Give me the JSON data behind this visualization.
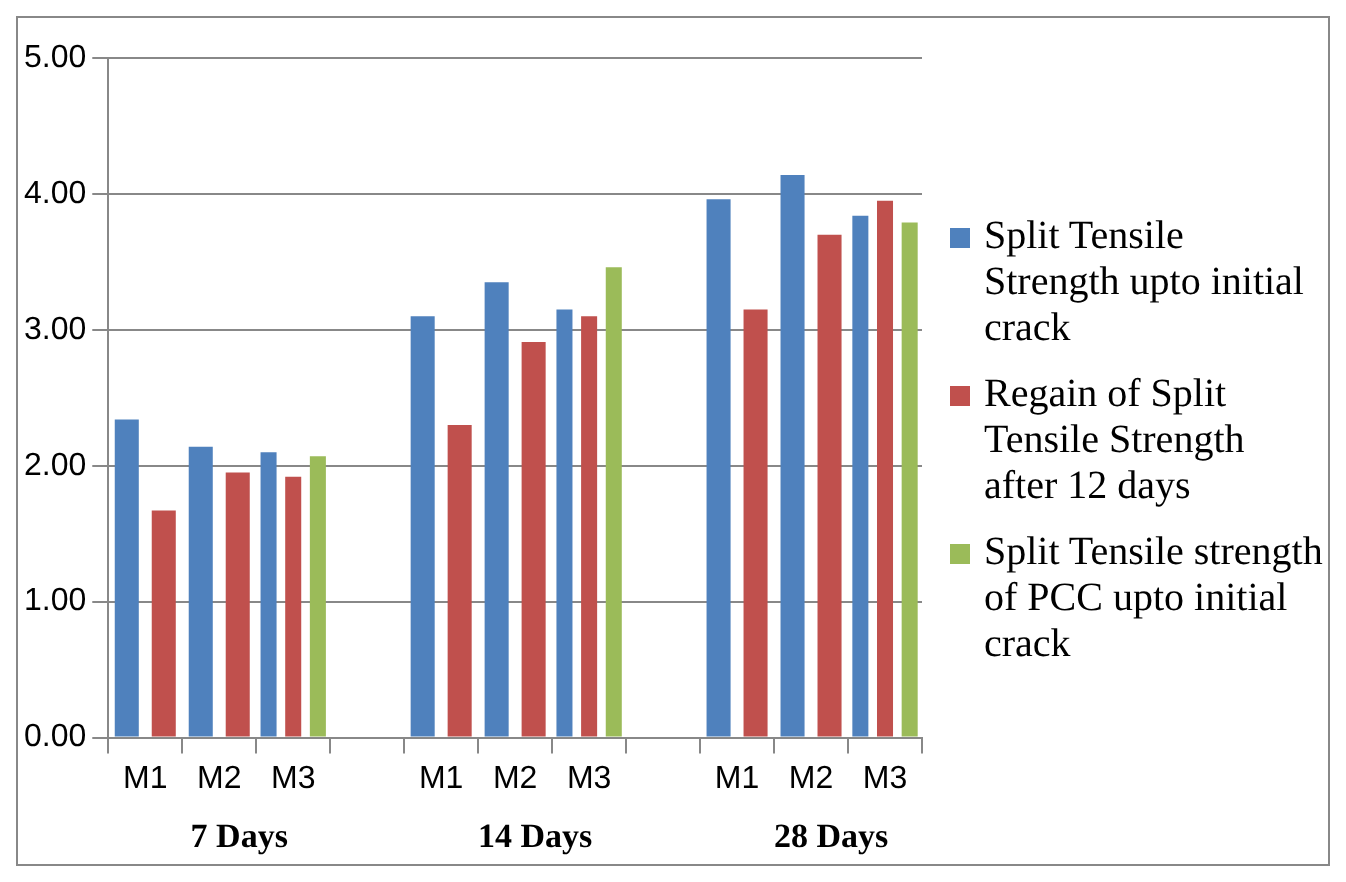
{
  "chart_data": {
    "type": "bar",
    "categories": [
      "M1",
      "M2",
      "M3",
      null,
      "M1",
      "M2",
      "M3",
      null,
      "M1",
      "M2",
      "M3"
    ],
    "series": [
      {
        "name": "Split Tensile Strength upto initial crack",
        "color": "#4f81bd",
        "values": [
          2.34,
          2.14,
          2.1,
          null,
          3.1,
          3.35,
          3.15,
          null,
          3.96,
          4.14,
          3.84
        ]
      },
      {
        "name": "Regain of Split Tensile Strength after 12 days",
        "color": "#c0504d",
        "values": [
          1.67,
          1.95,
          1.92,
          null,
          2.3,
          2.91,
          3.1,
          null,
          3.15,
          3.7,
          3.95
        ]
      },
      {
        "name": "Split Tensile strength of PCC upto initial crack",
        "color": "#9bbb59",
        "values": [
          null,
          null,
          2.07,
          null,
          null,
          null,
          3.46,
          null,
          null,
          null,
          3.79
        ]
      }
    ],
    "annotations": [
      "7 Days",
      "14 Days",
      "28 Days"
    ],
    "ylim": [
      0,
      5
    ],
    "yticks": [
      {
        "value": 0,
        "label": "0.00"
      },
      {
        "value": 1,
        "label": "1.00"
      },
      {
        "value": 2,
        "label": "2.00"
      },
      {
        "value": 3,
        "label": "3.00"
      },
      {
        "value": 4,
        "label": "4.00"
      },
      {
        "value": 5,
        "label": "5.00"
      }
    ],
    "grid": "y",
    "legend": "right"
  }
}
